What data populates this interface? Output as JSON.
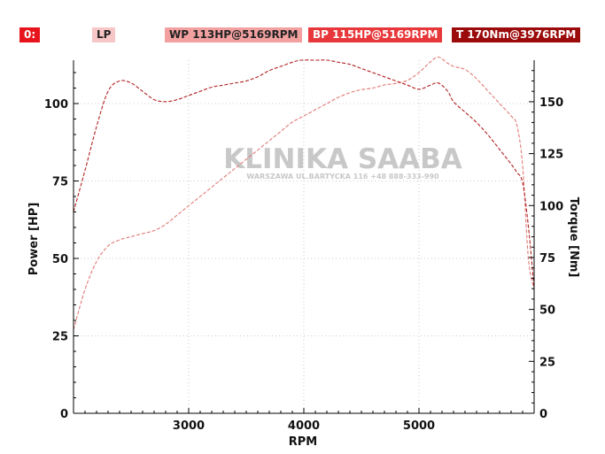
{
  "badges": {
    "zero": "0:",
    "lp": "LP",
    "wp": "WP 113HP@5169RPM",
    "bp": "BP 115HP@5169RPM",
    "t": "T 170Nm@3976RPM"
  },
  "colors": {
    "zero_bg": "#e8141c",
    "lp_bg": "#f7c6c6",
    "wp_bg": "#f2a0a0",
    "bp_bg": "#e8373a",
    "t_bg": "#9b0b0b",
    "wheel_power": "#b22222",
    "torque": "#e07a75",
    "grid": "#bbbbbb"
  },
  "watermark": {
    "title": "KLINIKA SAABA",
    "subtitle": "WARSZAWA UL.BARTYCKA 116 +48 888-333-990"
  },
  "chart_data": {
    "type": "line",
    "xlabel": "RPM",
    "ylabel": "Power [HP]",
    "y2label": "Torque [Nm]",
    "xlim": [
      2000,
      6000
    ],
    "ylim": [
      0,
      114
    ],
    "y2lim": [
      0,
      170
    ],
    "x_ticks": [
      3000,
      4000,
      5000
    ],
    "y_ticks": [
      0,
      25,
      50,
      75,
      100
    ],
    "y2_ticks": [
      0,
      25,
      50,
      75,
      100,
      125,
      150
    ],
    "grid": true,
    "series": [
      {
        "axis": "left",
        "x": [
          2000,
          2100,
          2200,
          2300,
          2400,
          2500,
          2600,
          2700,
          2800,
          2900,
          3000,
          3100,
          3200,
          3300,
          3400,
          3500,
          3600,
          3700,
          3800,
          3900,
          4000,
          4100,
          4200,
          4300,
          4400,
          4500,
          4600,
          4700,
          4800,
          4900,
          5000,
          5100,
          5169,
          5250,
          5300,
          5400,
          5500,
          5600,
          5700,
          5800,
          5850,
          5900,
          5950,
          6000
        ],
        "y": [
          27,
          40,
          49,
          54,
          56,
          57,
          58,
          59,
          61,
          64,
          67,
          70,
          73,
          76,
          79,
          82,
          85,
          88,
          91,
          94,
          96,
          98,
          100,
          102,
          103.5,
          104.5,
          105,
          106,
          106.5,
          107.5,
          110,
          113.5,
          115,
          113,
          112,
          111,
          108,
          104,
          100,
          96,
          93,
          80,
          50,
          40
        ]
      },
      {
        "axis": "right",
        "x": [
          2000,
          2100,
          2200,
          2300,
          2400,
          2500,
          2600,
          2700,
          2800,
          2900,
          3000,
          3100,
          3200,
          3300,
          3400,
          3500,
          3600,
          3700,
          3800,
          3900,
          3976,
          4100,
          4200,
          4300,
          4400,
          4500,
          4600,
          4700,
          4800,
          4900,
          5000,
          5100,
          5169,
          5250,
          5300,
          5400,
          5500,
          5600,
          5700,
          5800,
          5850,
          5900,
          5950,
          6000
        ],
        "y": [
          97,
          117,
          138,
          155,
          160,
          159,
          155,
          151,
          150,
          151,
          153,
          155,
          157,
          158,
          159,
          160,
          162,
          165,
          167,
          169,
          170,
          170,
          170,
          169,
          168,
          166,
          164,
          162,
          160,
          158,
          156,
          158,
          159,
          155,
          150,
          145,
          140,
          134,
          127,
          120,
          116,
          111,
          90,
          60
        ]
      }
    ]
  }
}
